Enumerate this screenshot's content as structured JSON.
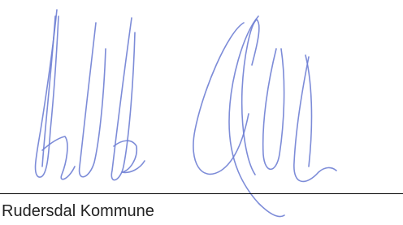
{
  "signature_block": {
    "organization": "Rudersdal Kommune"
  }
}
